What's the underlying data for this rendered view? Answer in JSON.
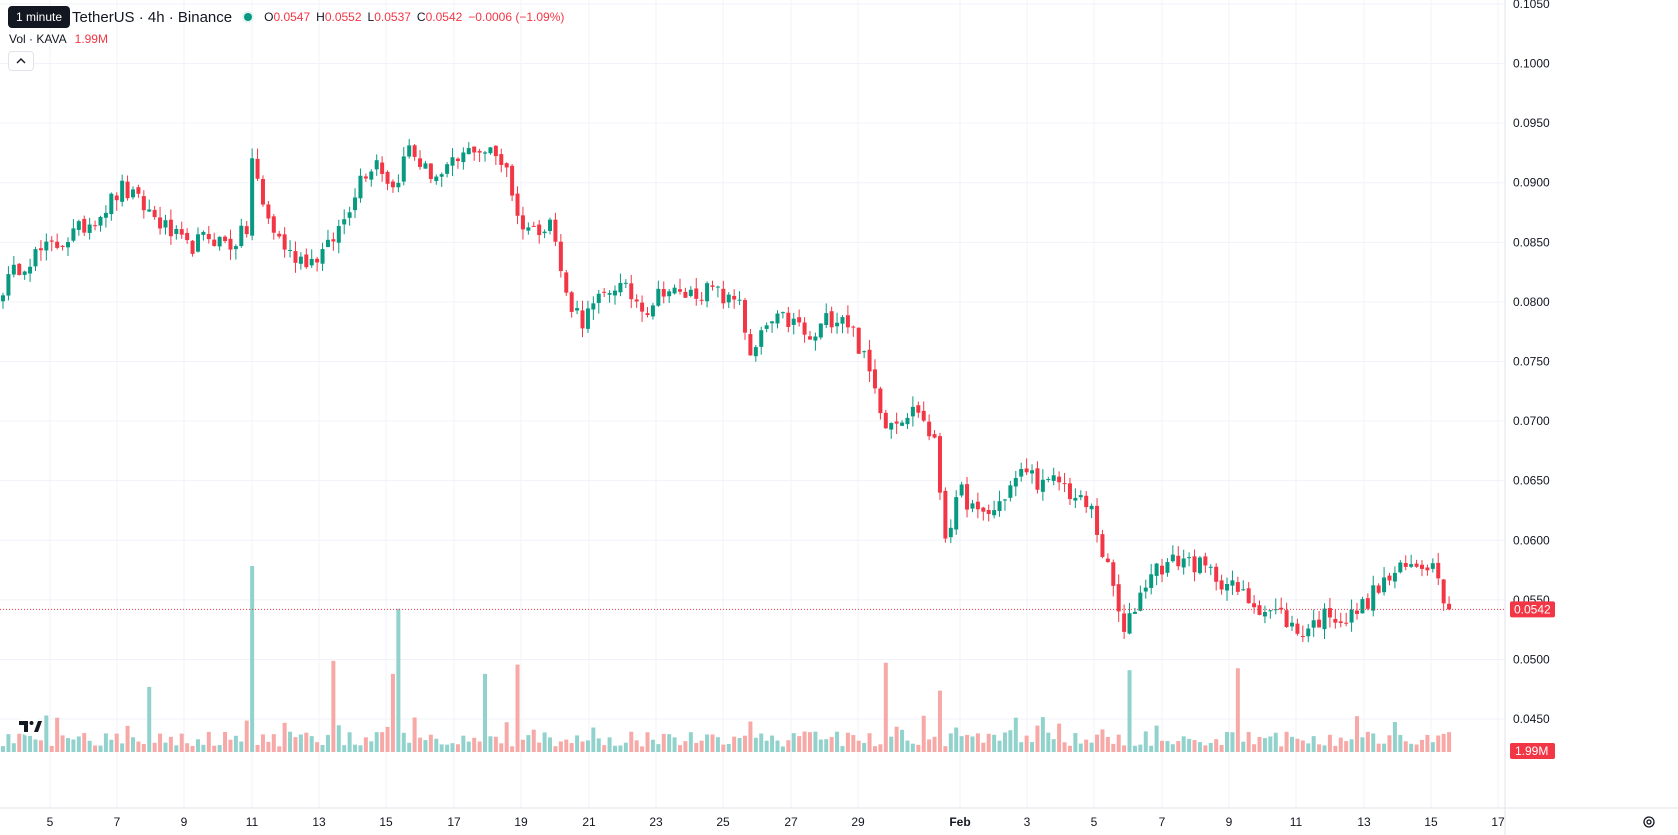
{
  "header": {
    "tooltip": "1 minute",
    "symbol_title": "TetherUS · 4h · Binance",
    "ohlc": {
      "o_label": "O",
      "o_value": "0.0547",
      "h_label": "H",
      "h_value": "0.0552",
      "l_label": "L",
      "l_value": "0.0537",
      "c_label": "C",
      "c_value": "0.0542",
      "change": "−0.0006 (−1.09%)"
    },
    "volume": {
      "label": "Vol · KAVA",
      "value": "1.99M"
    }
  },
  "price_scale": {
    "ticks": [
      "0.1050",
      "0.1000",
      "0.0950",
      "0.0900",
      "0.0850",
      "0.0800",
      "0.0750",
      "0.0700",
      "0.0650",
      "0.0600",
      "0.0550",
      "0.0500",
      "0.0450"
    ],
    "last_price_label": "0.0542",
    "last_volume_label": "1.99M"
  },
  "time_scale": {
    "labels": [
      "5",
      "7",
      "9",
      "11",
      "13",
      "15",
      "17",
      "19",
      "21",
      "23",
      "25",
      "27",
      "29",
      "Feb",
      "3",
      "5",
      "7",
      "9",
      "11",
      "13",
      "15",
      "17"
    ]
  },
  "colors": {
    "up": "#089981",
    "down": "#f23645",
    "up_volume": "#92d2cc",
    "down_volume": "#f7a9a7",
    "grid": "#f0f3fa"
  },
  "chart_data": {
    "type": "candlestick",
    "interval": "4h",
    "ylim": [
      0.0445,
      0.1055
    ],
    "xlabel": "",
    "ylabel": "",
    "grid": true,
    "last_price": 0.0542,
    "anchors": [
      {
        "x": 0,
        "y": 0.0812
      },
      {
        "x": 3,
        "y": 0.083
      },
      {
        "x": 6,
        "y": 0.084
      },
      {
        "x": 10,
        "y": 0.0848
      },
      {
        "x": 14,
        "y": 0.086
      },
      {
        "x": 18,
        "y": 0.0875
      },
      {
        "x": 22,
        "y": 0.0895
      },
      {
        "x": 26,
        "y": 0.088
      },
      {
        "x": 30,
        "y": 0.0862
      },
      {
        "x": 34,
        "y": 0.0845
      },
      {
        "x": 38,
        "y": 0.0855
      },
      {
        "x": 42,
        "y": 0.0848
      },
      {
        "x": 45,
        "y": 0.086
      },
      {
        "x": 46,
        "y": 0.092
      },
      {
        "x": 48,
        "y": 0.088
      },
      {
        "x": 50,
        "y": 0.086
      },
      {
        "x": 53,
        "y": 0.084
      },
      {
        "x": 57,
        "y": 0.0835
      },
      {
        "x": 60,
        "y": 0.0845
      },
      {
        "x": 63,
        "y": 0.087
      },
      {
        "x": 66,
        "y": 0.0905
      },
      {
        "x": 69,
        "y": 0.092
      },
      {
        "x": 72,
        "y": 0.0895
      },
      {
        "x": 75,
        "y": 0.093
      },
      {
        "x": 78,
        "y": 0.091
      },
      {
        "x": 81,
        "y": 0.0905
      },
      {
        "x": 84,
        "y": 0.0918
      },
      {
        "x": 87,
        "y": 0.093
      },
      {
        "x": 90,
        "y": 0.0925
      },
      {
        "x": 93,
        "y": 0.0915
      },
      {
        "x": 95,
        "y": 0.087
      },
      {
        "x": 98,
        "y": 0.086
      },
      {
        "x": 101,
        "y": 0.087
      },
      {
        "x": 104,
        "y": 0.0805
      },
      {
        "x": 107,
        "y": 0.0785
      },
      {
        "x": 110,
        "y": 0.08
      },
      {
        "x": 113,
        "y": 0.0815
      },
      {
        "x": 116,
        "y": 0.0805
      },
      {
        "x": 119,
        "y": 0.0795
      },
      {
        "x": 122,
        "y": 0.0812
      },
      {
        "x": 125,
        "y": 0.0805
      },
      {
        "x": 128,
        "y": 0.0808
      },
      {
        "x": 131,
        "y": 0.081
      },
      {
        "x": 134,
        "y": 0.08
      },
      {
        "x": 136,
        "y": 0.0805
      },
      {
        "x": 138,
        "y": 0.075
      },
      {
        "x": 141,
        "y": 0.078
      },
      {
        "x": 144,
        "y": 0.0785
      },
      {
        "x": 147,
        "y": 0.078
      },
      {
        "x": 149,
        "y": 0.0765
      },
      {
        "x": 152,
        "y": 0.0785
      },
      {
        "x": 155,
        "y": 0.079
      },
      {
        "x": 157,
        "y": 0.0775
      },
      {
        "x": 160,
        "y": 0.074
      },
      {
        "x": 163,
        "y": 0.07
      },
      {
        "x": 166,
        "y": 0.0705
      },
      {
        "x": 169,
        "y": 0.071
      },
      {
        "x": 172,
        "y": 0.068
      },
      {
        "x": 174,
        "y": 0.0605
      },
      {
        "x": 177,
        "y": 0.064
      },
      {
        "x": 180,
        "y": 0.062
      },
      {
        "x": 183,
        "y": 0.0625
      },
      {
        "x": 186,
        "y": 0.0645
      },
      {
        "x": 189,
        "y": 0.066
      },
      {
        "x": 192,
        "y": 0.0645
      },
      {
        "x": 195,
        "y": 0.065
      },
      {
        "x": 198,
        "y": 0.0635
      },
      {
        "x": 201,
        "y": 0.0625
      },
      {
        "x": 203,
        "y": 0.059
      },
      {
        "x": 205,
        "y": 0.056
      },
      {
        "x": 207,
        "y": 0.052
      },
      {
        "x": 209,
        "y": 0.0545
      },
      {
        "x": 212,
        "y": 0.0575
      },
      {
        "x": 215,
        "y": 0.058
      },
      {
        "x": 218,
        "y": 0.0585
      },
      {
        "x": 221,
        "y": 0.0578
      },
      {
        "x": 224,
        "y": 0.057
      },
      {
        "x": 227,
        "y": 0.056
      },
      {
        "x": 230,
        "y": 0.055
      },
      {
        "x": 233,
        "y": 0.0542
      },
      {
        "x": 236,
        "y": 0.0538
      },
      {
        "x": 239,
        "y": 0.0522
      },
      {
        "x": 242,
        "y": 0.053
      },
      {
        "x": 245,
        "y": 0.054
      },
      {
        "x": 248,
        "y": 0.0532
      },
      {
        "x": 251,
        "y": 0.0545
      },
      {
        "x": 254,
        "y": 0.056
      },
      {
        "x": 257,
        "y": 0.0572
      },
      {
        "x": 260,
        "y": 0.0578
      },
      {
        "x": 263,
        "y": 0.0582
      },
      {
        "x": 265,
        "y": 0.0575
      },
      {
        "x": 266,
        "y": 0.0555
      },
      {
        "x": 267,
        "y": 0.0542
      }
    ],
    "volume_spikes": [
      {
        "x": 46,
        "v": 1.0
      },
      {
        "x": 73,
        "v": 0.77
      },
      {
        "x": 61,
        "v": 0.49
      },
      {
        "x": 72,
        "v": 0.42
      },
      {
        "x": 95,
        "v": 0.47
      },
      {
        "x": 89,
        "v": 0.42
      },
      {
        "x": 27,
        "v": 0.35
      },
      {
        "x": 163,
        "v": 0.48
      },
      {
        "x": 173,
        "v": 0.33
      },
      {
        "x": 208,
        "v": 0.44
      },
      {
        "x": 228,
        "v": 0.45
      }
    ]
  }
}
